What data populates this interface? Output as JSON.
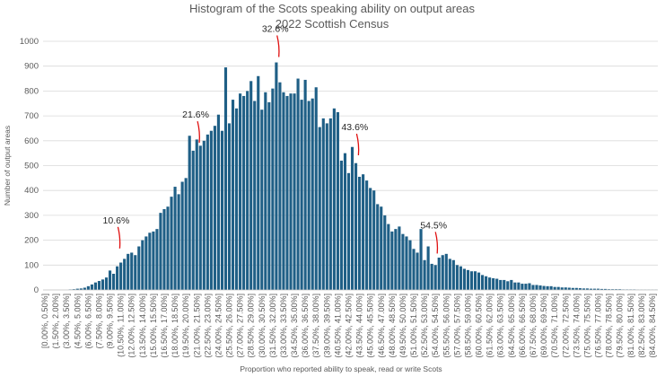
{
  "chart_data": {
    "type": "bar",
    "title": "Histogram of the Scots speaking ability on output areas",
    "subtitle": "2022 Scottish Census",
    "xlabel": "Proportion who reported ability to speak, read or write Scots",
    "ylabel": "Number of output areas",
    "ylim": [
      0,
      1000
    ],
    "yticks": [
      0,
      100,
      200,
      300,
      400,
      500,
      600,
      700,
      800,
      900,
      1000
    ],
    "grid": true,
    "bar_color": "#1f5f86",
    "bin_width_percent": 0.5,
    "x_start_percent": 0,
    "x_end_percent": 85,
    "x_tick_labels": [
      "[0.00%, 0.50%]",
      "(1.50%, 2.00%]",
      "(3.00%, 3.50%]",
      "(4.50%, 5.00%]",
      "(6.00%, 6.50%]",
      "(7.50%, 8.00%]",
      "(9.00%, 9.50%]",
      "(10.50%, 11.00%]",
      "(12.00%, 12.50%]",
      "(13.50%, 14.00%]",
      "(15.00%, 15.50%]",
      "(16.50%, 17.00%]",
      "(18.00%, 18.50%]",
      "(19.50%, 20.00%]",
      "(21.00%, 21.50%]",
      "(22.50%, 23.00%]",
      "(24.00%, 24.50%]",
      "(25.50%, 26.00%]",
      "(27.00%, 27.50%]",
      "(28.50%, 29.00%]",
      "(30.00%, 30.50%]",
      "(31.50%, 32.00%]",
      "(33.00%, 33.50%]",
      "(34.50%, 35.00%]",
      "(36.00%, 36.50%]",
      "(37.50%, 38.00%]",
      "(39.00%, 39.50%]",
      "(40.50%, 41.00%]",
      "(42.00%, 42.50%]",
      "(43.50%, 44.00%]",
      "(45.00%, 45.50%]",
      "(46.50%, 47.00%]",
      "(48.00%, 48.50%]",
      "(49.50%, 50.00%]",
      "(51.00%, 51.50%]",
      "(52.50%, 53.00%]",
      "(54.00%, 54.50%]",
      "(55.50%, 56.00%]",
      "(57.00%, 57.50%]",
      "(58.50%, 59.00%]",
      "(60.00%, 60.50%]",
      "(61.50%, 62.00%]",
      "(63.00%, 63.50%]",
      "(64.50%, 65.00%]",
      "(66.00%, 66.50%]",
      "(67.50%, 68.00%]",
      "(69.00%, 69.50%]",
      "(70.50%, 71.00%]",
      "(72.00%, 72.50%]",
      "(73.50%, 74.00%]",
      "(75.00%, 75.50%]",
      "(76.50%, 77.00%]",
      "(78.00%, 78.50%]",
      "(79.50%, 80.00%]",
      "(81.00%, 81.50%]",
      "(82.50%, 83.00%]",
      "(84.00%, 84.50%]"
    ],
    "values": [
      0,
      0,
      0,
      0,
      0,
      0,
      0,
      2,
      3,
      5,
      6,
      9,
      15,
      22,
      30,
      36,
      42,
      50,
      78,
      65,
      95,
      110,
      125,
      145,
      150,
      140,
      175,
      200,
      215,
      230,
      235,
      245,
      310,
      325,
      335,
      375,
      415,
      385,
      435,
      450,
      620,
      560,
      605,
      580,
      600,
      625,
      640,
      660,
      705,
      640,
      895,
      670,
      765,
      730,
      790,
      780,
      800,
      840,
      760,
      860,
      725,
      795,
      755,
      810,
      915,
      835,
      795,
      780,
      790,
      790,
      850,
      765,
      845,
      760,
      770,
      815,
      655,
      690,
      670,
      690,
      730,
      715,
      520,
      550,
      470,
      575,
      510,
      455,
      465,
      440,
      410,
      400,
      345,
      335,
      300,
      265,
      235,
      245,
      255,
      225,
      215,
      200,
      165,
      150,
      245,
      120,
      175,
      105,
      100,
      130,
      140,
      145,
      125,
      120,
      100,
      95,
      85,
      80,
      75,
      75,
      70,
      60,
      55,
      50,
      47,
      45,
      40,
      40,
      35,
      40,
      30,
      30,
      25,
      25,
      27,
      20,
      20,
      18,
      16,
      15,
      15,
      12,
      12,
      10,
      10,
      9,
      8,
      8,
      7,
      6,
      6,
      5,
      5,
      5,
      4,
      4,
      3,
      3,
      3,
      3,
      2,
      2,
      2,
      2,
      1,
      1,
      1,
      1,
      1,
      1
    ],
    "annotations": [
      {
        "text": "10.6%",
        "x": 10.6,
        "y": 145
      },
      {
        "text": "21.6%",
        "x": 21.6,
        "y": 570
      },
      {
        "text": "32.6%",
        "x": 32.6,
        "y": 915
      },
      {
        "text": "43.6%",
        "x": 43.6,
        "y": 520
      },
      {
        "text": "54.5%",
        "x": 54.5,
        "y": 125
      }
    ],
    "annotation_color": "#e01010"
  }
}
